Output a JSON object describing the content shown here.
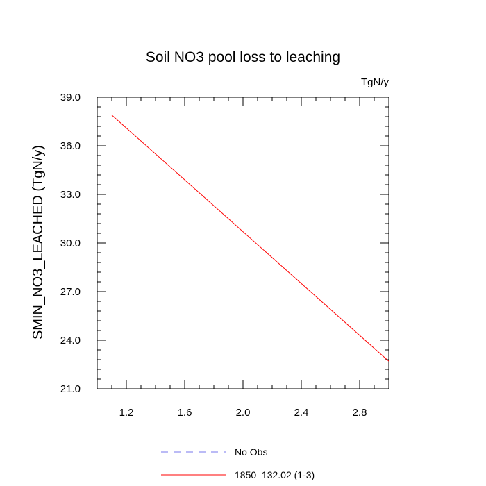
{
  "chart_data": {
    "type": "line",
    "title": "Soil NO3 pool loss to leaching",
    "units_label": "TgN/y",
    "ylabel": "SMIN_NO3_LEACHED  (TgN/y)",
    "xlabel": "",
    "xlim": [
      1.0,
      3.0
    ],
    "ylim": [
      21.0,
      39.0
    ],
    "x_ticks": [
      "1.2",
      "1.6",
      "2.0",
      "2.4",
      "2.8"
    ],
    "x_tick_values": [
      1.2,
      1.6,
      2.0,
      2.4,
      2.8
    ],
    "y_ticks": [
      "21.0",
      "24.0",
      "27.0",
      "30.0",
      "33.0",
      "36.0",
      "39.0"
    ],
    "y_tick_values": [
      21.0,
      24.0,
      27.0,
      30.0,
      33.0,
      36.0,
      39.0
    ],
    "grid": false,
    "legend_position": "bottom",
    "series": [
      {
        "name": "1850_132.02 (1-3)",
        "color": "#ff0000",
        "style": "solid",
        "x": [
          1.1,
          3.0
        ],
        "y": [
          37.9,
          22.7
        ]
      }
    ],
    "legend": [
      {
        "label": "No Obs",
        "color": "#7777ee",
        "style": "dashed"
      },
      {
        "label": "1850_132.02 (1-3)",
        "color": "#ff0000",
        "style": "solid"
      }
    ]
  }
}
